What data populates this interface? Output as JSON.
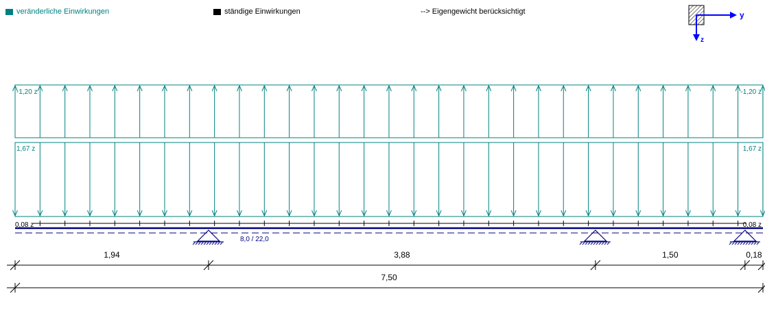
{
  "colors": {
    "variable": "#008080",
    "permanent": "#000000",
    "beam": "#000080",
    "axes": "#0000ff"
  },
  "legend": {
    "variable_label": "veränderliche Einwirkungen",
    "permanent_label": "ständige Einwirkungen",
    "selfweight_note": "--> Eigengewicht berücksichtigt"
  },
  "axes": {
    "y_label": "y",
    "z_label": "z"
  },
  "loads": {
    "upward": {
      "left_label": "-1,20 z",
      "right_label": "-1,20 z",
      "value": -1.2,
      "direction": "up"
    },
    "downward": {
      "left_label": "1,67 z",
      "right_label": "1,67 z",
      "value": 1.67,
      "direction": "down"
    },
    "small": {
      "left_label": "0,08 z",
      "right_label": "0,08 z",
      "value": 0.08
    }
  },
  "beam": {
    "section_label": "8,0 / 22,0",
    "total_length": 7.5
  },
  "supports_at_m": [
    1.94,
    5.82,
    7.32
  ],
  "dimensions": {
    "spans": [
      {
        "label": "1,94",
        "value": 1.94
      },
      {
        "label": "3,88",
        "value": 3.88
      },
      {
        "label": "1,50",
        "value": 1.5
      },
      {
        "label": "0,18",
        "value": 0.18
      }
    ],
    "total": {
      "label": "7,50",
      "value": 7.5
    }
  }
}
